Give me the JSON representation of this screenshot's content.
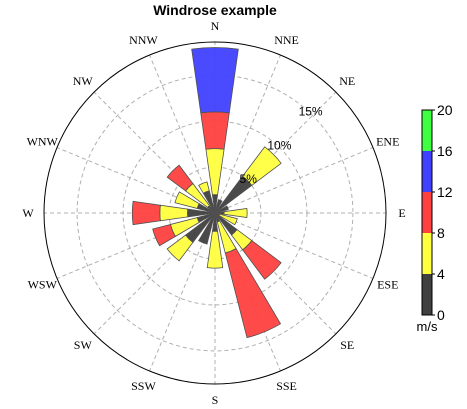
{
  "chart_data": {
    "type": "windrose",
    "title": "Windrose example",
    "directions": [
      "N",
      "NNE",
      "NE",
      "ENE",
      "E",
      "ESE",
      "SE",
      "SSE",
      "S",
      "SSW",
      "SW",
      "WSW",
      "W",
      "WNW",
      "NW",
      "NNW"
    ],
    "radial_ticks": [
      5,
      10,
      15
    ],
    "radial_tick_labels": [
      "5%",
      "10%",
      "15%"
    ],
    "radial_max": 18.6,
    "radial_grid_max": 20,
    "colorbar": {
      "unit": "m/s",
      "bins": [
        0,
        4,
        8,
        12,
        16,
        20
      ],
      "tick_labels": [
        "0",
        "4",
        "8",
        "12",
        "16",
        "20"
      ],
      "colors": [
        "#404040",
        "#ffff40",
        "#ff4040",
        "#4040ff",
        "#40ff40"
      ]
    },
    "series_note": "stacked bins per direction, values are cumulative frequency percent",
    "series": [
      {
        "direction": "N",
        "stacks": [
          2,
          7,
          11,
          18
        ]
      },
      {
        "direction": "NNE",
        "stacks": [
          1.5
        ]
      },
      {
        "direction": "NE",
        "stacks": [
          5,
          9
        ]
      },
      {
        "direction": "ENE",
        "stacks": [
          1.5
        ]
      },
      {
        "direction": "E",
        "stacks": [
          1,
          3.5
        ]
      },
      {
        "direction": "ESE",
        "stacks": [
          0.5,
          2.5
        ]
      },
      {
        "direction": "SE",
        "stacks": [
          3,
          5,
          9
        ]
      },
      {
        "direction": "SSE",
        "stacks": [
          1,
          4.5,
          14
        ]
      },
      {
        "direction": "S",
        "stacks": [
          2,
          6
        ]
      },
      {
        "direction": "SSW",
        "stacks": [
          3.5
        ]
      },
      {
        "direction": "SW",
        "stacks": [
          4,
          6.5
        ]
      },
      {
        "direction": "WSW",
        "stacks": [
          2,
          5,
          7
        ]
      },
      {
        "direction": "W",
        "stacks": [
          3,
          6,
          9
        ]
      },
      {
        "direction": "WNW",
        "stacks": [
          2,
          4.5
        ]
      },
      {
        "direction": "NW",
        "stacks": [
          1,
          4,
          6.5
        ]
      },
      {
        "direction": "NNW",
        "stacks": [
          2.5,
          3.5
        ]
      }
    ]
  }
}
